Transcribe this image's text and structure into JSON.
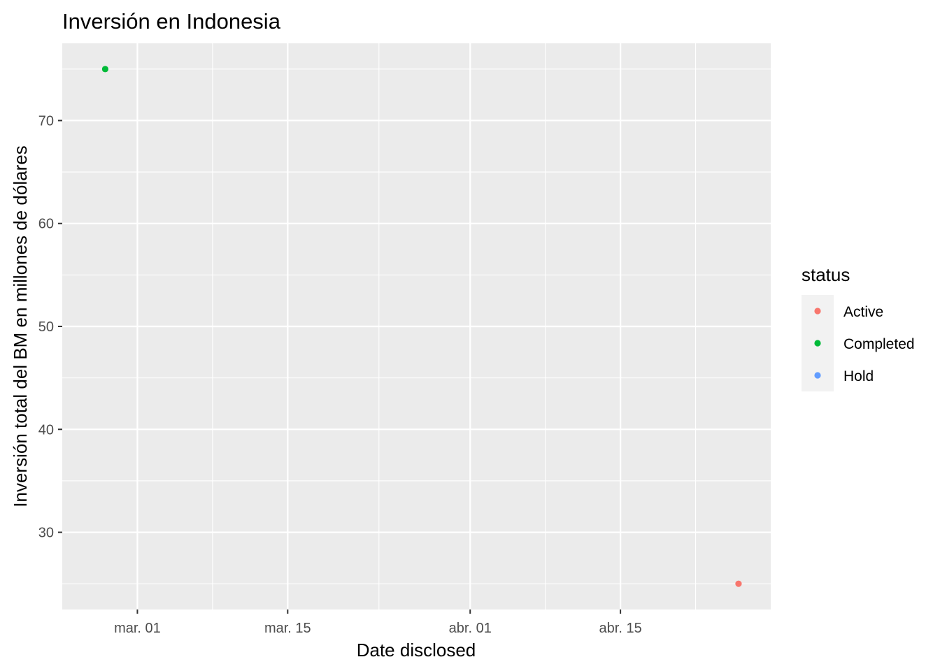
{
  "chart_data": {
    "type": "scatter",
    "title": "Inversión en Indonesia",
    "xlabel": "Date disclosed",
    "ylabel": "Inversión total del BM en millones de dólares",
    "x_axis": {
      "type": "date",
      "range": [
        "2024-02-23",
        "2024-04-29"
      ],
      "ticks": [
        {
          "value": "2024-03-01",
          "label": "mar. 01"
        },
        {
          "value": "2024-03-15",
          "label": "mar. 15"
        },
        {
          "value": "2024-04-01",
          "label": "abr. 01"
        },
        {
          "value": "2024-04-15",
          "label": "abr. 15"
        }
      ]
    },
    "y_axis": {
      "range": [
        22.5,
        77.5
      ],
      "ticks": [
        30,
        40,
        50,
        60,
        70
      ]
    },
    "grid": true,
    "legend": {
      "title": "status",
      "placement": "right",
      "entries": [
        {
          "label": "Active",
          "color": "#F8766D"
        },
        {
          "label": "Completed",
          "color": "#00BA38"
        },
        {
          "label": "Hold",
          "color": "#619CFF"
        }
      ]
    },
    "points": [
      {
        "x": "2024-02-27",
        "y": 75,
        "status": "Completed"
      },
      {
        "x": "2024-04-26",
        "y": 25,
        "status": "Active"
      }
    ]
  }
}
